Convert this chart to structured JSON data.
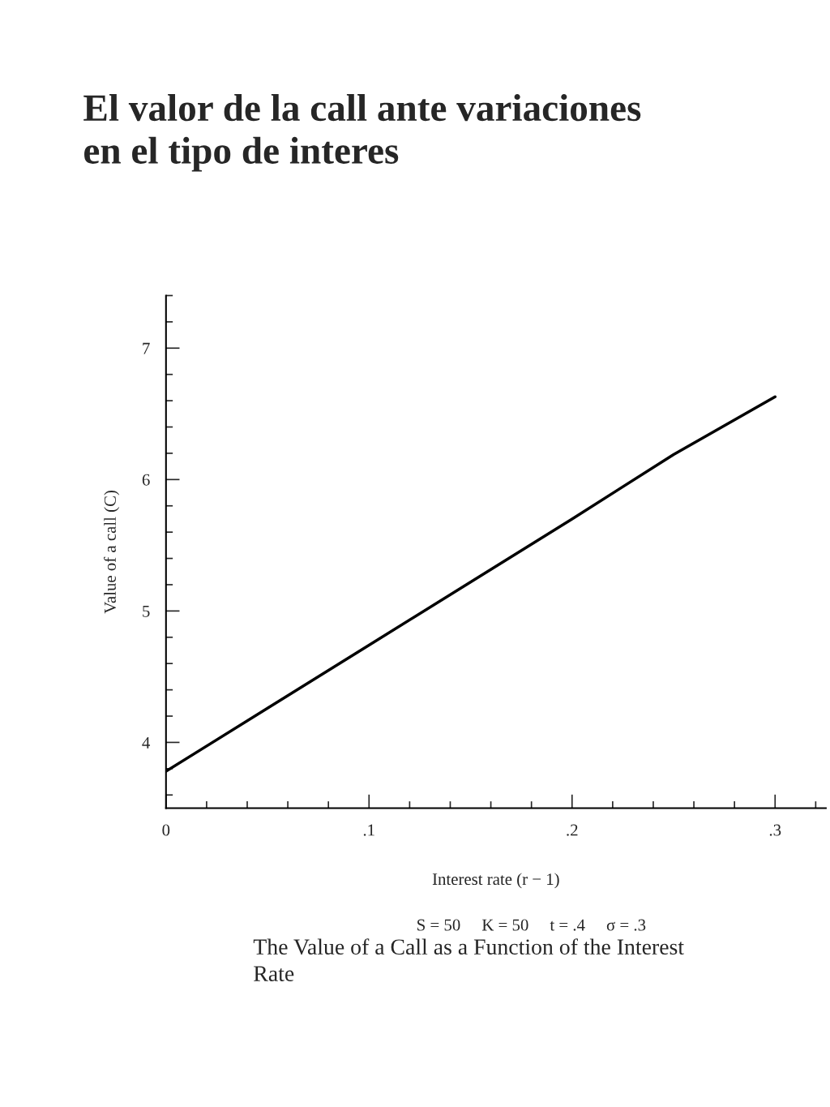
{
  "chart_data": {
    "type": "line",
    "title": "El valor de la call ante variaciones\nen el tipo de interes",
    "xlabel": "Interest rate (r − 1)",
    "ylabel": "Value of a call (C)",
    "x": [
      0,
      0.05,
      0.1,
      0.15,
      0.2,
      0.25,
      0.3
    ],
    "series": [
      {
        "color": "#000000",
        "values": [
          3.78,
          4.26,
          4.74,
          5.22,
          5.7,
          6.19,
          6.63
        ]
      }
    ],
    "xlim": [
      0,
      0.325
    ],
    "ylim": [
      3.5,
      7.4
    ],
    "xticks": [
      {
        "value": 0,
        "label": "0"
      },
      {
        "value": 0.02,
        "label": null
      },
      {
        "value": 0.04,
        "label": null
      },
      {
        "value": 0.06,
        "label": null
      },
      {
        "value": 0.08,
        "label": null
      },
      {
        "value": 0.1,
        "label": ".1"
      },
      {
        "value": 0.12,
        "label": null
      },
      {
        "value": 0.14,
        "label": null
      },
      {
        "value": 0.16,
        "label": null
      },
      {
        "value": 0.18,
        "label": null
      },
      {
        "value": 0.2,
        "label": ".2"
      },
      {
        "value": 0.22,
        "label": null
      },
      {
        "value": 0.24,
        "label": null
      },
      {
        "value": 0.26,
        "label": null
      },
      {
        "value": 0.28,
        "label": null
      },
      {
        "value": 0.3,
        "label": ".3"
      },
      {
        "value": 0.32,
        "label": null
      }
    ],
    "yticks": [
      {
        "value": 3.6,
        "label": null
      },
      {
        "value": 3.8,
        "label": null
      },
      4,
      {
        "value": 4.2,
        "label": null
      },
      {
        "value": 4.4,
        "label": null
      },
      {
        "value": 4.6,
        "label": null
      },
      {
        "value": 4.8,
        "label": null
      },
      5,
      {
        "value": 5.2,
        "label": null
      },
      {
        "value": 5.4,
        "label": null
      },
      {
        "value": 5.6,
        "label": null
      },
      {
        "value": 5.8,
        "label": null
      },
      6,
      {
        "value": 6.2,
        "label": null
      },
      {
        "value": 6.4,
        "label": null
      },
      {
        "value": 6.6,
        "label": null
      },
      {
        "value": 6.8,
        "label": null
      },
      7,
      {
        "value": 7.2,
        "label": null
      },
      {
        "value": 7.4,
        "label": null
      }
    ],
    "grid": false,
    "line_style": "solid",
    "marker": "none",
    "annotations": [
      "S = 50     K = 50     t = .4     σ = .3",
      "The Value of a Call as a Function of the Interest\nRate"
    ]
  }
}
